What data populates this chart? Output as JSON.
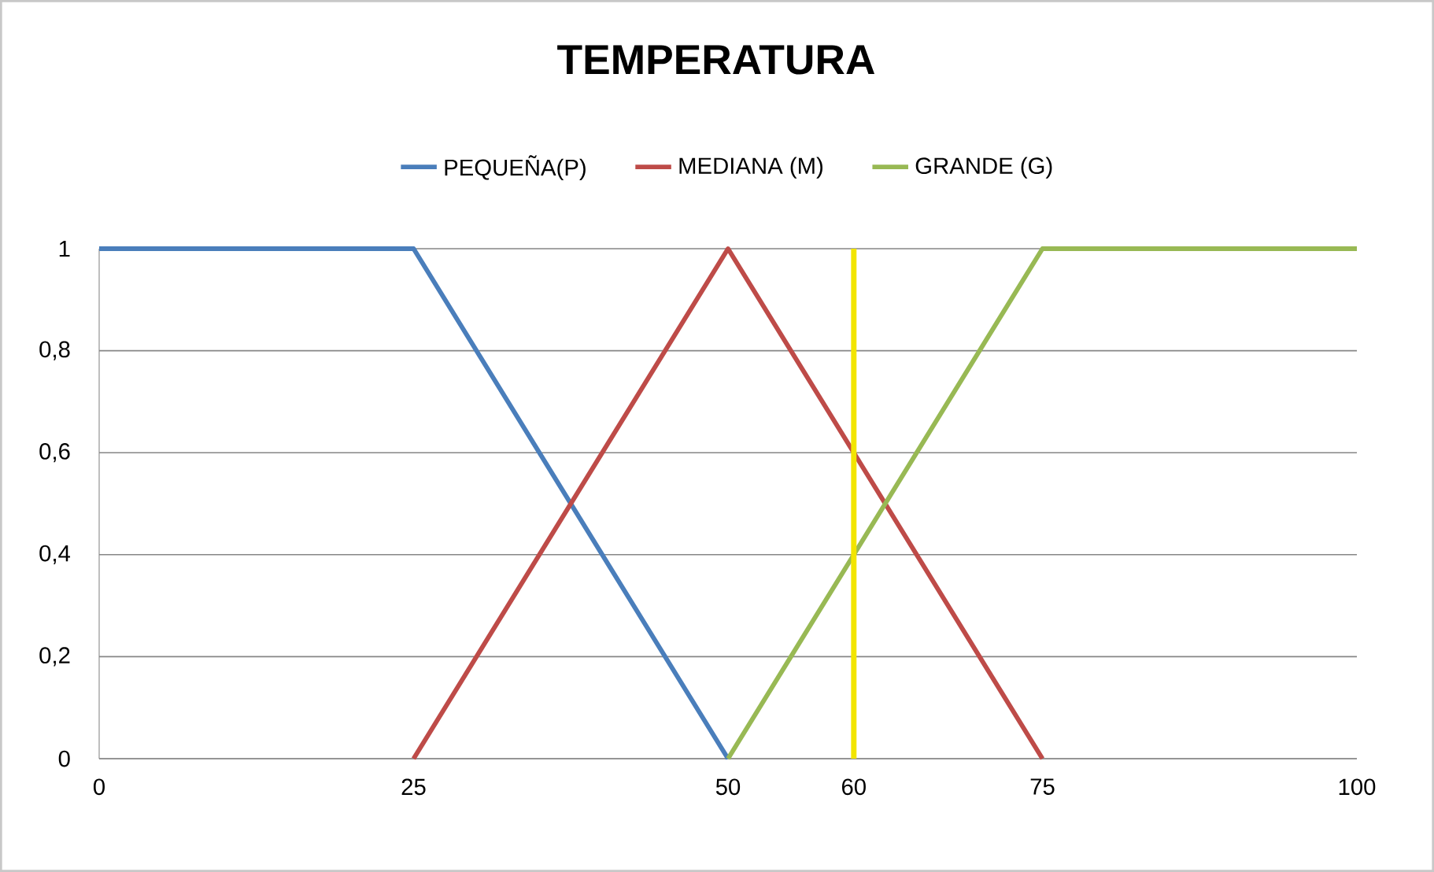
{
  "chart_data": {
    "type": "line",
    "title": "TEMPERATURA",
    "series": [
      {
        "name": "PEQUEÑA(P)",
        "color": "#4a7ebb",
        "x": [
          0,
          25,
          50
        ],
        "values": [
          1,
          1,
          0
        ]
      },
      {
        "name": "MEDIANA (M)",
        "color": "#be4b48",
        "x": [
          25,
          50,
          75
        ],
        "values": [
          0,
          1,
          0
        ]
      },
      {
        "name": "GRANDE (G)",
        "color": "#98b954",
        "x": [
          50,
          75,
          100
        ],
        "values": [
          0,
          1,
          1
        ]
      }
    ],
    "xlim": [
      0,
      100
    ],
    "xticks": [
      0,
      25,
      50,
      60,
      75,
      100
    ],
    "ylim": [
      0,
      1
    ],
    "yticks": [
      0,
      {
        "value": 0.2,
        "label": "0,2"
      },
      {
        "value": 0.4,
        "label": "0,4"
      },
      {
        "value": 0.6,
        "label": "0,6"
      },
      {
        "value": 0.8,
        "label": "0,8"
      },
      1
    ],
    "ref_lines": [
      {
        "axis": "x",
        "value": 60,
        "color": "#f2e500"
      }
    ],
    "grid": "y",
    "legend": "top",
    "marker": "none",
    "line_style": "solid"
  }
}
